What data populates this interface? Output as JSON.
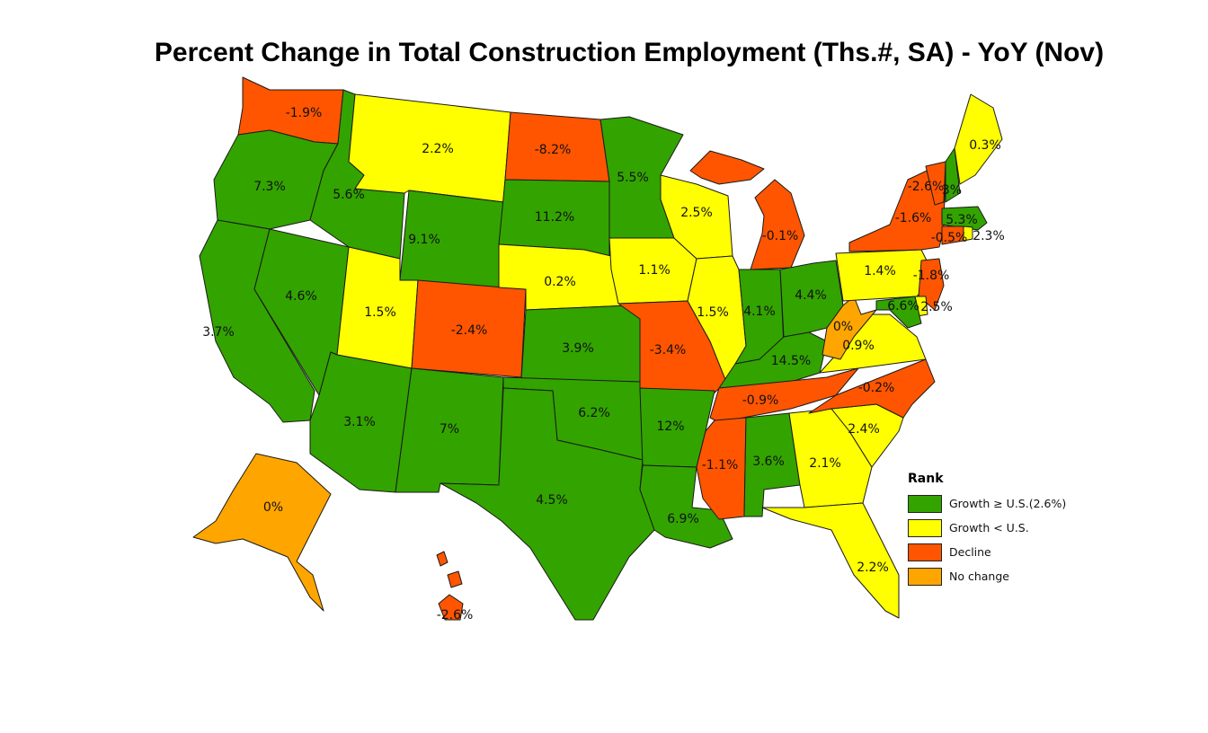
{
  "title": "Percent Change in Total Construction Employment (Ths.#, SA) - YoY (Nov)",
  "legend": {
    "title": "Rank",
    "items": [
      {
        "key": "growth_above",
        "label": "Growth ≥ U.S.(2.6%)",
        "color": "#33a300"
      },
      {
        "key": "growth_below",
        "label": "Growth < U.S.",
        "color": "#ffff00"
      },
      {
        "key": "decline",
        "label": "Decline",
        "color": "#ff5500"
      },
      {
        "key": "no_change",
        "label": "No change",
        "color": "#ffa500"
      }
    ]
  },
  "states": [
    {
      "code": "WA",
      "value": "-1.9%",
      "category": "decline"
    },
    {
      "code": "OR",
      "value": "7.3%",
      "category": "growth_above"
    },
    {
      "code": "CA",
      "value": "3.7%",
      "category": "growth_above"
    },
    {
      "code": "NV",
      "value": "4.6%",
      "category": "growth_above"
    },
    {
      "code": "ID",
      "value": "5.6%",
      "category": "growth_above"
    },
    {
      "code": "MT",
      "value": "2.2%",
      "category": "growth_below"
    },
    {
      "code": "WY",
      "value": "9.1%",
      "category": "growth_above"
    },
    {
      "code": "UT",
      "value": "1.5%",
      "category": "growth_below"
    },
    {
      "code": "AZ",
      "value": "3.1%",
      "category": "growth_above"
    },
    {
      "code": "CO",
      "value": "-2.4%",
      "category": "decline"
    },
    {
      "code": "NM",
      "value": "7%",
      "category": "growth_above"
    },
    {
      "code": "ND",
      "value": "-8.2%",
      "category": "decline"
    },
    {
      "code": "SD",
      "value": "11.2%",
      "category": "growth_above"
    },
    {
      "code": "NE",
      "value": "0.2%",
      "category": "growth_below"
    },
    {
      "code": "KS",
      "value": "3.9%",
      "category": "growth_above"
    },
    {
      "code": "OK",
      "value": "6.2%",
      "category": "growth_above"
    },
    {
      "code": "TX",
      "value": "4.5%",
      "category": "growth_above"
    },
    {
      "code": "MN",
      "value": "5.5%",
      "category": "growth_above"
    },
    {
      "code": "IA",
      "value": "1.1%",
      "category": "growth_below"
    },
    {
      "code": "MO",
      "value": "-3.4%",
      "category": "decline"
    },
    {
      "code": "AR",
      "value": "12%",
      "category": "growth_above"
    },
    {
      "code": "LA",
      "value": "6.9%",
      "category": "growth_above"
    },
    {
      "code": "WI",
      "value": "2.5%",
      "category": "growth_below"
    },
    {
      "code": "IL",
      "value": "1.5%",
      "category": "growth_below"
    },
    {
      "code": "MI",
      "value": "-0.1%",
      "category": "decline"
    },
    {
      "code": "IN",
      "value": "4.1%",
      "category": "growth_above"
    },
    {
      "code": "OH",
      "value": "4.4%",
      "category": "growth_above"
    },
    {
      "code": "KY",
      "value": "14.5%",
      "category": "growth_above"
    },
    {
      "code": "TN",
      "value": "-0.9%",
      "category": "decline"
    },
    {
      "code": "MS",
      "value": "-1.1%",
      "category": "decline"
    },
    {
      "code": "AL",
      "value": "3.6%",
      "category": "growth_above"
    },
    {
      "code": "GA",
      "value": "2.1%",
      "category": "growth_below"
    },
    {
      "code": "FL",
      "value": "2.2%",
      "category": "growth_below"
    },
    {
      "code": "SC",
      "value": "2.4%",
      "category": "growth_below"
    },
    {
      "code": "NC",
      "value": "-0.2%",
      "category": "decline"
    },
    {
      "code": "VA",
      "value": "0.9%",
      "category": "growth_below"
    },
    {
      "code": "WV",
      "value": "0%",
      "category": "no_change"
    },
    {
      "code": "PA",
      "value": "1.4%",
      "category": "growth_below"
    },
    {
      "code": "NY",
      "value": "-1.6%",
      "category": "decline"
    },
    {
      "code": "VT",
      "value": "-2.6%",
      "category": "decline"
    },
    {
      "code": "NH",
      "value": "3%",
      "category": "growth_above"
    },
    {
      "code": "ME",
      "value": "0.3%",
      "category": "growth_below"
    },
    {
      "code": "MA",
      "value": "5.3%",
      "category": "growth_above"
    },
    {
      "code": "RI",
      "value": "2.3%",
      "category": "growth_below"
    },
    {
      "code": "CT",
      "value": "-0.5%",
      "category": "decline"
    },
    {
      "code": "NJ",
      "value": "-1.8%",
      "category": "decline"
    },
    {
      "code": "DE",
      "value": "2.5%",
      "category": "growth_below"
    },
    {
      "code": "MD",
      "value": "6.6%",
      "category": "growth_above"
    },
    {
      "code": "AK",
      "value": "0%",
      "category": "no_change"
    },
    {
      "code": "HI",
      "value": "-2.6%",
      "category": "decline"
    }
  ]
}
